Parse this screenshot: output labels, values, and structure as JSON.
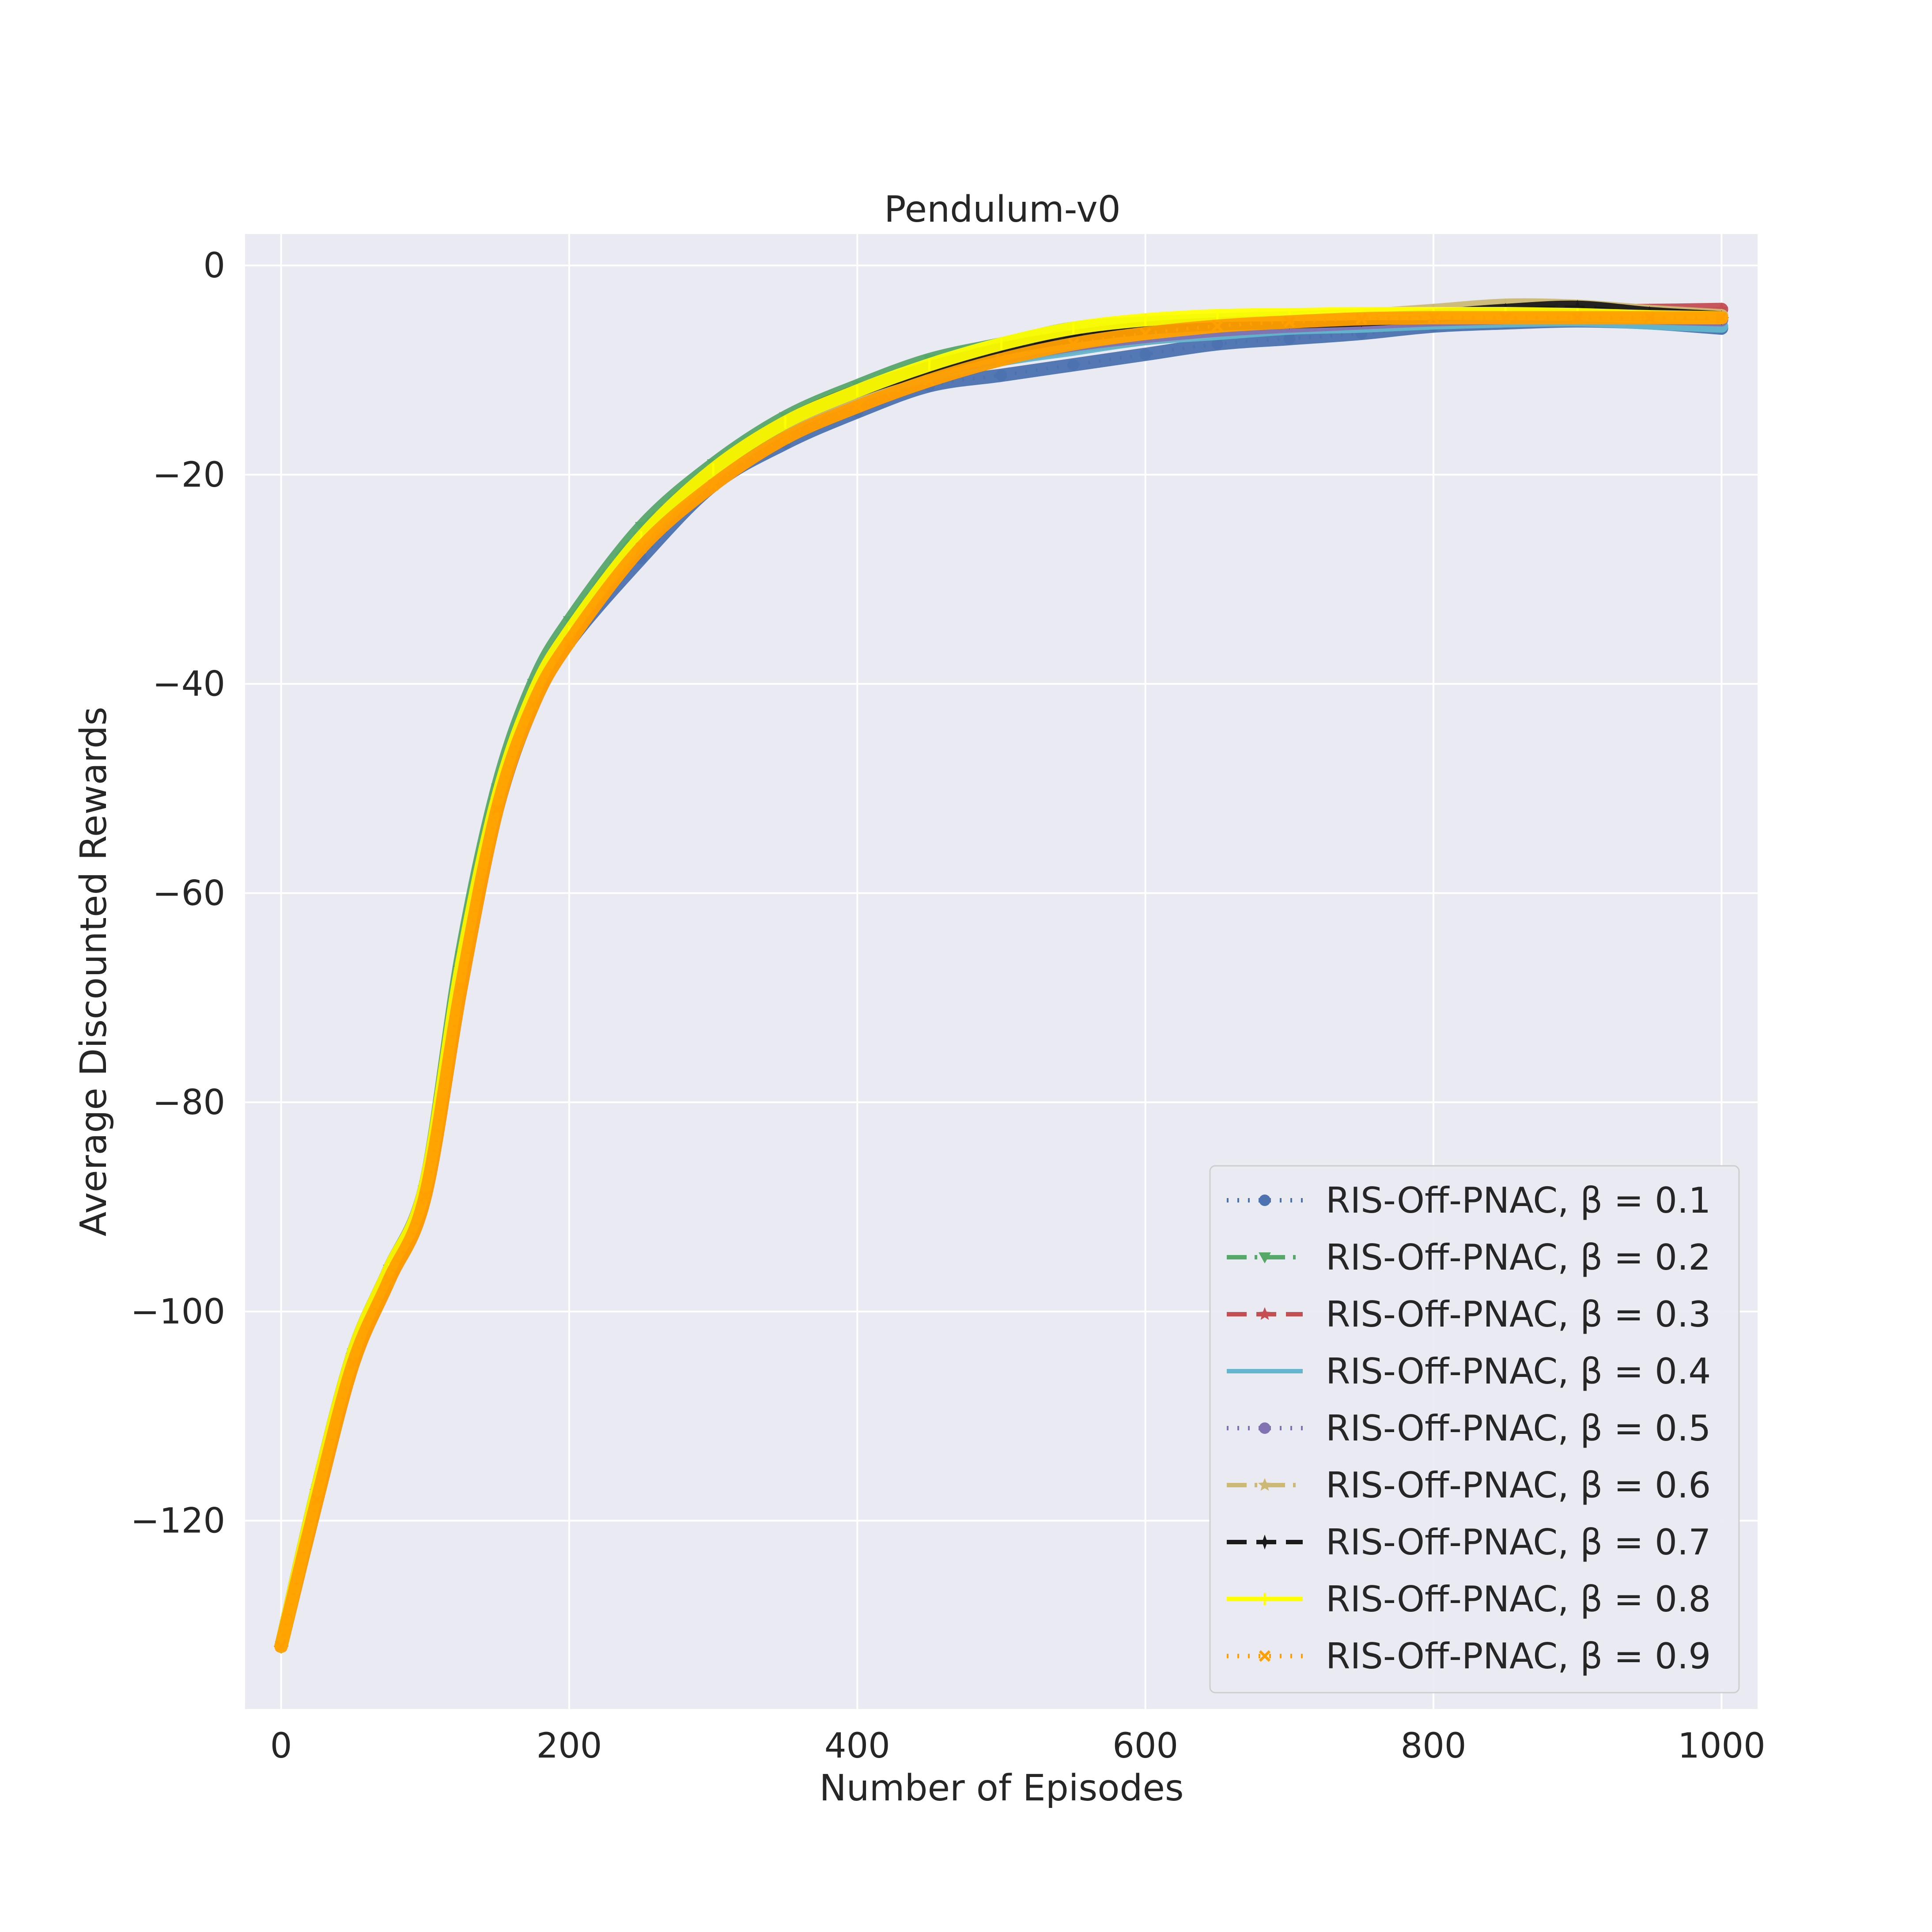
{
  "chart_data": {
    "type": "line",
    "title": "Pendulum-v0",
    "xlabel": "Number of Episodes",
    "ylabel": "Average Discounted Rewards",
    "xlim": [
      -25,
      1025
    ],
    "ylim": [
      -138,
      3
    ],
    "xticks": [
      0,
      200,
      400,
      600,
      800,
      1000
    ],
    "xtick_labels": [
      "0",
      "200",
      "400",
      "600",
      "800",
      "1000"
    ],
    "yticks": [
      0,
      -20,
      -40,
      -60,
      -80,
      -100,
      -120
    ],
    "ytick_labels": [
      "0",
      "−20",
      "−40",
      "−60",
      "−80",
      "−100",
      "−120"
    ],
    "grid": true,
    "legend_position": "lower-right",
    "x": [
      0,
      25,
      50,
      75,
      100,
      125,
      150,
      175,
      200,
      250,
      300,
      350,
      400,
      450,
      500,
      550,
      600,
      650,
      700,
      750,
      800,
      850,
      900,
      950,
      1000
    ],
    "series": [
      {
        "name": "RIS-Off-PNAC, β = 0.1",
        "color": "#4c72b0",
        "style": "dotted",
        "marker": "circle",
        "values": [
          -132,
          -117,
          -104,
          -96,
          -88,
          -68,
          -52,
          -42,
          -36,
          -28,
          -21,
          -17,
          -14,
          -11.5,
          -10.5,
          -9.5,
          -8.5,
          -7.5,
          -7,
          -6.5,
          -5.8,
          -5.5,
          -5.3,
          -5.5,
          -6
        ]
      },
      {
        "name": "RIS-Off-PNAC, β = 0.2",
        "color": "#55a868",
        "style": "dashdot",
        "marker": "triangle-down",
        "values": [
          -132,
          -117,
          -104,
          -96,
          -88,
          -66,
          -50,
          -40,
          -34,
          -25,
          -19,
          -14.5,
          -11.5,
          -9,
          -7.5,
          -6,
          -5.5,
          -5.2,
          -5,
          -4.8,
          -4.6,
          -4.5,
          -4.6,
          -4.9,
          -5.2
        ]
      },
      {
        "name": "RIS-Off-PNAC, β = 0.3",
        "color": "#c44e52",
        "style": "dashed",
        "marker": "star",
        "values": [
          -132,
          -118,
          -105,
          -97,
          -89,
          -69,
          -52,
          -42,
          -36,
          -27,
          -21,
          -16.5,
          -13.5,
          -11,
          -9,
          -7.8,
          -7,
          -6.2,
          -5.7,
          -5.3,
          -5,
          -4.6,
          -4.3,
          -4.3,
          -4.2
        ]
      },
      {
        "name": "RIS-Off-PNAC, β = 0.4",
        "color": "#64b5cd",
        "style": "solid",
        "marker": "none",
        "values": [
          -132,
          -117,
          -104,
          -96,
          -88,
          -67,
          -51,
          -41,
          -35,
          -26.5,
          -20,
          -15.5,
          -12.5,
          -10.5,
          -9,
          -8,
          -7,
          -6.5,
          -6,
          -5.8,
          -5.5,
          -5.3,
          -5.2,
          -5.5,
          -5.8
        ]
      },
      {
        "name": "RIS-Off-PNAC, β = 0.5",
        "color": "#8172b2",
        "style": "dotted",
        "marker": "circle",
        "values": [
          -132,
          -117,
          -104,
          -96,
          -88,
          -67,
          -51,
          -41,
          -35,
          -26.5,
          -20,
          -15.5,
          -12.5,
          -10.2,
          -8.8,
          -7.6,
          -6.8,
          -6.2,
          -5.8,
          -5.5,
          -5.2,
          -5,
          -4.8,
          -5,
          -5.2
        ]
      },
      {
        "name": "RIS-Off-PNAC, β = 0.6",
        "color": "#ccb974",
        "style": "dashdot",
        "marker": "star",
        "values": [
          -132,
          -117,
          -104,
          -96,
          -88,
          -67,
          -51,
          -41,
          -35,
          -26.5,
          -20,
          -15.5,
          -12.5,
          -10.2,
          -8.5,
          -7.3,
          -6.5,
          -5.8,
          -5.3,
          -4.8,
          -4.3,
          -3.8,
          -3.9,
          -4.4,
          -4.8
        ]
      },
      {
        "name": "RIS-Off-PNAC, β = 0.7",
        "color": "#1a1a1a",
        "style": "dashed",
        "marker": "plus",
        "values": [
          -132,
          -117,
          -104,
          -96,
          -88,
          -67,
          -51,
          -41,
          -35,
          -26,
          -19.5,
          -15,
          -12,
          -9.8,
          -8,
          -6.8,
          -6,
          -5.6,
          -5.4,
          -5.2,
          -4.8,
          -4.3,
          -4,
          -4.6,
          -5
        ]
      },
      {
        "name": "RIS-Off-PNAC, β = 0.8",
        "color": "#ffff00",
        "style": "solid",
        "marker": "vline",
        "values": [
          -132,
          -117,
          -104,
          -96,
          -88,
          -67,
          -51,
          -41,
          -35,
          -26,
          -19.5,
          -15,
          -12,
          -9.5,
          -7.5,
          -6,
          -5.2,
          -4.8,
          -4.7,
          -4.6,
          -4.6,
          -4.6,
          -4.7,
          -4.9,
          -5
        ]
      },
      {
        "name": "RIS-Off-PNAC, β = 0.9",
        "color": "#ff9f00",
        "style": "dotted",
        "marker": "x",
        "values": [
          -132,
          -118,
          -105,
          -97,
          -89,
          -69,
          -52,
          -42,
          -36,
          -27,
          -21,
          -16.5,
          -13.5,
          -11,
          -9,
          -7.5,
          -6.5,
          -5.8,
          -5.4,
          -5.1,
          -5,
          -5,
          -5,
          -5,
          -5
        ]
      }
    ]
  }
}
